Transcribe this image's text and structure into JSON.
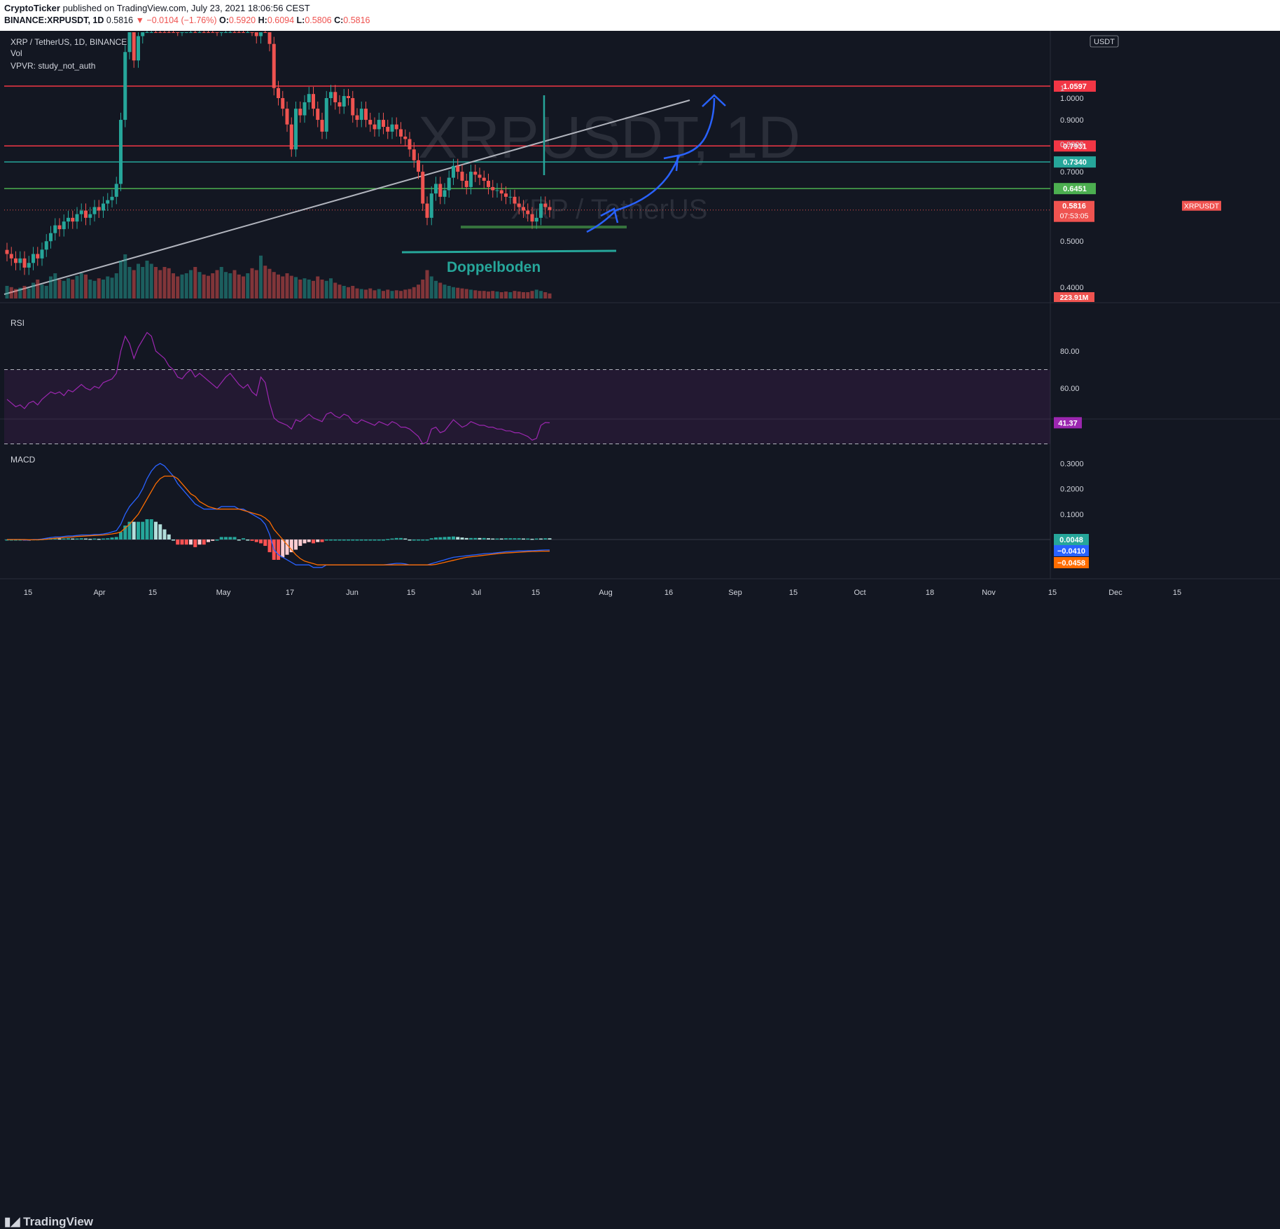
{
  "header": {
    "author": "CryptoTicker",
    "published": "published on TradingView.com, July 23, 2021 18:06:56 CEST",
    "symbol": "BINANCE:XRPUSDT, 1D",
    "last": "0.5816",
    "change": "−0.0104 (−1.76%)",
    "o_label": "O:",
    "o": "0.5920",
    "h_label": "H:",
    "h": "0.6094",
    "l_label": "L:",
    "l": "0.5806",
    "c_label": "C:",
    "c": "0.5816"
  },
  "legend": {
    "pair": "XRP / TetherUS, 1D, BINANCE",
    "vol": "Vol",
    "vpvr": "VPVR: study_not_auth",
    "rsi": "RSI",
    "macd": "MACD"
  },
  "watermark": {
    "symbol": "XRPUSDT, 1D",
    "name": "XRP / TetherUS"
  },
  "annotation": {
    "text": "Doppelboden",
    "color": "#26a69a"
  },
  "footer": {
    "brand": "TradingView"
  },
  "colors": {
    "up": "#26a69a",
    "down": "#ef5350",
    "rsi": "#9c27b0",
    "macd_line": "#2962ff",
    "signal_line": "#ff6d00",
    "level_red": "#f23645",
    "level_green": "#4caf50",
    "level_teal": "#26a69a",
    "arrow": "#2962ff"
  },
  "chart_data": [
    {
      "type": "candlestick",
      "title": "XRP / TetherUS, 1D, BINANCE",
      "y_scale": "log",
      "price_ticks": [
        "1",
        "1.0000",
        "0.9000",
        "0.8000",
        "0.7000",
        "0.6000",
        "0.5000",
        "0.4000"
      ],
      "price_tick_values": [
        1.05,
        1.0,
        0.9,
        0.8,
        0.7,
        0.6,
        0.5,
        0.4
      ],
      "currency": "USDT",
      "x_ticks": [
        "15",
        "Apr",
        "15",
        "May",
        "17",
        "Jun",
        "15",
        "Jul",
        "15",
        "Aug",
        "16",
        "Sep",
        "15",
        "Oct",
        "18",
        "Nov",
        "15",
        "Dec",
        "15"
      ],
      "horizontal_levels": [
        {
          "label": "1.0597",
          "value": 1.0597,
          "color": "#f23645"
        },
        {
          "label": "0.7931",
          "value": 0.7931,
          "color": "#f23645"
        },
        {
          "label": "0.7340",
          "value": 0.734,
          "color": "#26a69a"
        },
        {
          "label": "0.6451",
          "value": 0.6451,
          "color": "#4caf50"
        }
      ],
      "current": {
        "symbol": "XRPUSDT",
        "price": "0.5816",
        "countdown": "07:53:05"
      },
      "volume_label": "223.91M",
      "closes": [
        0.47,
        0.46,
        0.45,
        0.46,
        0.44,
        0.45,
        0.47,
        0.46,
        0.48,
        0.5,
        0.52,
        0.54,
        0.53,
        0.55,
        0.56,
        0.55,
        0.57,
        0.58,
        0.56,
        0.57,
        0.59,
        0.58,
        0.6,
        0.61,
        0.62,
        0.66,
        0.9,
        1.25,
        1.4,
        1.2,
        1.35,
        1.5,
        1.7,
        1.8,
        1.65,
        1.6,
        1.55,
        1.5,
        1.45,
        1.4,
        1.42,
        1.5,
        1.55,
        1.5,
        1.6,
        1.58,
        1.52,
        1.45,
        1.4,
        1.48,
        1.55,
        1.6,
        1.55,
        1.5,
        1.45,
        1.5,
        1.4,
        1.35,
        1.6,
        1.55,
        1.3,
        1.05,
        1.0,
        0.95,
        0.88,
        0.78,
        0.95,
        0.92,
        0.98,
        1.02,
        0.95,
        0.9,
        0.85,
        1.0,
        1.03,
        0.98,
        0.96,
        1.01,
        1.0,
        0.92,
        0.9,
        0.95,
        0.9,
        0.88,
        0.86,
        0.9,
        0.87,
        0.85,
        0.88,
        0.86,
        0.83,
        0.82,
        0.78,
        0.74,
        0.7,
        0.6,
        0.56,
        0.63,
        0.66,
        0.62,
        0.64,
        0.68,
        0.72,
        0.7,
        0.67,
        0.65,
        0.7,
        0.69,
        0.68,
        0.67,
        0.65,
        0.64,
        0.64,
        0.63,
        0.62,
        0.62,
        0.6,
        0.59,
        0.58,
        0.57,
        0.55,
        0.56,
        0.6,
        0.59,
        0.5816
      ],
      "volume_pct": [
        0.2,
        0.18,
        0.15,
        0.17,
        0.2,
        0.16,
        0.25,
        0.3,
        0.22,
        0.2,
        0.35,
        0.4,
        0.3,
        0.28,
        0.32,
        0.3,
        0.36,
        0.4,
        0.38,
        0.3,
        0.28,
        0.32,
        0.3,
        0.35,
        0.33,
        0.4,
        0.6,
        0.7,
        0.5,
        0.45,
        0.55,
        0.5,
        0.6,
        0.55,
        0.5,
        0.45,
        0.5,
        0.48,
        0.4,
        0.35,
        0.38,
        0.4,
        0.45,
        0.5,
        0.42,
        0.38,
        0.36,
        0.4,
        0.45,
        0.5,
        0.42,
        0.4,
        0.45,
        0.38,
        0.35,
        0.4,
        0.48,
        0.45,
        0.68,
        0.52,
        0.47,
        0.42,
        0.38,
        0.35,
        0.4,
        0.36,
        0.34,
        0.3,
        0.32,
        0.3,
        0.28,
        0.35,
        0.3,
        0.28,
        0.32,
        0.25,
        0.22,
        0.2,
        0.18,
        0.2,
        0.16,
        0.15,
        0.14,
        0.16,
        0.13,
        0.15,
        0.12,
        0.14,
        0.12,
        0.13,
        0.12,
        0.14,
        0.15,
        0.18,
        0.22,
        0.3,
        0.45,
        0.35,
        0.28,
        0.25,
        0.22,
        0.2,
        0.18,
        0.17,
        0.16,
        0.15,
        0.14,
        0.13,
        0.12,
        0.12,
        0.11,
        0.12,
        0.11,
        0.1,
        0.11,
        0.1,
        0.12,
        0.11,
        0.1,
        0.1,
        0.12,
        0.14,
        0.12,
        0.1,
        0.08
      ]
    },
    {
      "type": "line",
      "title": "RSI",
      "y_ticks": [
        "80.00",
        "60.00"
      ],
      "y_tick_values": [
        80,
        60
      ],
      "band": [
        70,
        30
      ],
      "current_label": "41.37",
      "values": [
        54,
        52,
        50,
        51,
        49,
        52,
        53,
        51,
        54,
        56,
        58,
        57,
        58,
        56,
        59,
        58,
        60,
        62,
        60,
        59,
        61,
        60,
        63,
        64,
        65,
        68,
        80,
        88,
        84,
        76,
        82,
        86,
        90,
        88,
        80,
        78,
        76,
        72,
        70,
        66,
        65,
        68,
        70,
        66,
        68,
        66,
        64,
        62,
        60,
        63,
        66,
        68,
        65,
        62,
        60,
        62,
        58,
        56,
        66,
        63,
        52,
        44,
        42,
        41,
        40,
        38,
        43,
        42,
        44,
        46,
        44,
        43,
        42,
        46,
        47,
        45,
        44,
        46,
        45,
        42,
        41,
        43,
        42,
        41,
        40,
        42,
        41,
        40,
        42,
        41,
        39,
        39,
        38,
        36,
        34,
        30,
        31,
        38,
        39,
        36,
        37,
        40,
        43,
        41,
        39,
        40,
        42,
        41,
        40,
        40,
        39,
        39,
        38,
        38,
        37,
        37,
        36,
        36,
        35,
        34,
        32,
        33,
        40,
        41.5,
        41.37
      ]
    },
    {
      "type": "line",
      "title": "MACD",
      "y_ticks": [
        "0.3000",
        "0.2000",
        "0.1000"
      ],
      "y_tick_values": [
        0.3,
        0.2,
        0.1
      ],
      "labels": [
        "0.0048",
        "−0.0410",
        "−0.0458"
      ],
      "macd": [
        0.0,
        0.0,
        0.0,
        0.0,
        -0.002,
        -0.002,
        0.0,
        0.0,
        0.002,
        0.005,
        0.008,
        0.01,
        0.01,
        0.012,
        0.014,
        0.014,
        0.016,
        0.018,
        0.018,
        0.018,
        0.02,
        0.02,
        0.022,
        0.025,
        0.03,
        0.035,
        0.06,
        0.1,
        0.13,
        0.15,
        0.17,
        0.2,
        0.24,
        0.27,
        0.29,
        0.3,
        0.29,
        0.27,
        0.25,
        0.22,
        0.2,
        0.18,
        0.16,
        0.14,
        0.13,
        0.12,
        0.12,
        0.12,
        0.12,
        0.13,
        0.13,
        0.13,
        0.13,
        0.12,
        0.12,
        0.11,
        0.1,
        0.09,
        0.08,
        0.06,
        0.02,
        -0.04,
        -0.06,
        -0.07,
        -0.08,
        -0.09,
        -0.1,
        -0.1,
        -0.1,
        -0.1,
        -0.11,
        -0.11,
        -0.11,
        -0.1,
        -0.1,
        -0.1,
        -0.1,
        -0.1,
        -0.1,
        -0.1,
        -0.1,
        -0.1,
        -0.1,
        -0.1,
        -0.1,
        -0.1,
        -0.1,
        -0.098,
        -0.096,
        -0.094,
        -0.094,
        -0.096,
        -0.1,
        -0.1,
        -0.1,
        -0.1,
        -0.1,
        -0.095,
        -0.09,
        -0.085,
        -0.08,
        -0.075,
        -0.07,
        -0.068,
        -0.066,
        -0.064,
        -0.062,
        -0.06,
        -0.058,
        -0.056,
        -0.055,
        -0.054,
        -0.052,
        -0.05,
        -0.048,
        -0.047,
        -0.046,
        -0.045,
        -0.045,
        -0.044,
        -0.044,
        -0.043,
        -0.042,
        -0.041,
        -0.041
      ],
      "signal": [
        0.0,
        0.0,
        0.0,
        0.0,
        0.0,
        -0.001,
        -0.001,
        -0.001,
        0.0,
        0.001,
        0.003,
        0.005,
        0.006,
        0.008,
        0.009,
        0.01,
        0.012,
        0.013,
        0.014,
        0.015,
        0.016,
        0.017,
        0.018,
        0.02,
        0.022,
        0.025,
        0.03,
        0.045,
        0.06,
        0.08,
        0.1,
        0.13,
        0.16,
        0.19,
        0.22,
        0.24,
        0.25,
        0.25,
        0.25,
        0.24,
        0.22,
        0.2,
        0.18,
        0.17,
        0.15,
        0.14,
        0.13,
        0.125,
        0.12,
        0.12,
        0.12,
        0.12,
        0.12,
        0.12,
        0.115,
        0.11,
        0.105,
        0.1,
        0.095,
        0.085,
        0.07,
        0.04,
        0.02,
        0.0,
        -0.02,
        -0.04,
        -0.06,
        -0.075,
        -0.085,
        -0.09,
        -0.095,
        -0.1,
        -0.1,
        -0.1,
        -0.1,
        -0.1,
        -0.1,
        -0.1,
        -0.1,
        -0.1,
        -0.1,
        -0.1,
        -0.1,
        -0.1,
        -0.1,
        -0.1,
        -0.1,
        -0.1,
        -0.1,
        -0.1,
        -0.1,
        -0.1,
        -0.1,
        -0.1,
        -0.1,
        -0.1,
        -0.1,
        -0.1,
        -0.098,
        -0.094,
        -0.09,
        -0.086,
        -0.082,
        -0.078,
        -0.074,
        -0.07,
        -0.068,
        -0.066,
        -0.064,
        -0.062,
        -0.06,
        -0.058,
        -0.056,
        -0.054,
        -0.053,
        -0.052,
        -0.051,
        -0.05,
        -0.049,
        -0.048,
        -0.047,
        -0.047,
        -0.046,
        -0.046,
        -0.0458
      ]
    }
  ]
}
